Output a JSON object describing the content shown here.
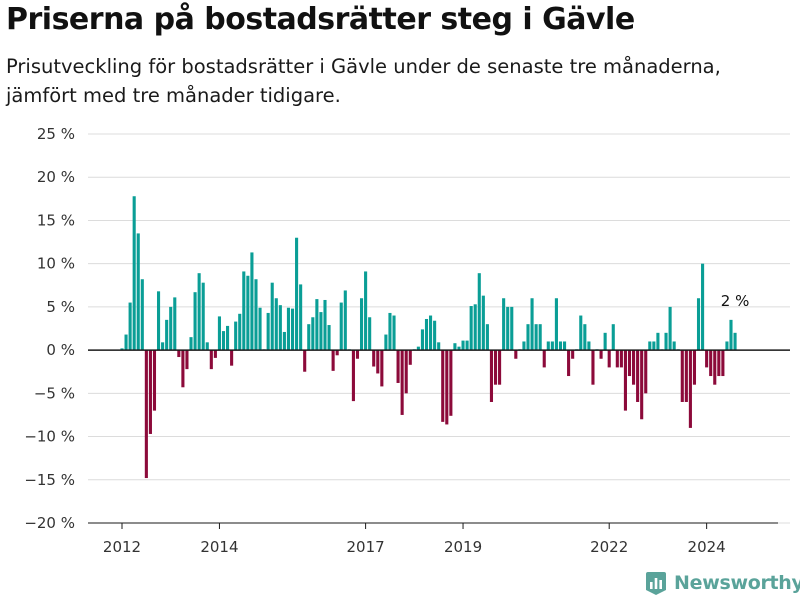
{
  "title": "Priserna på bostadsrätter steg i Gävle",
  "subtitle": "Prisutveckling för bostadsrätter i Gävle under de senaste tre månaderna, jämfört med tre månader tidigare.",
  "brand": "Newsworthy",
  "colors": {
    "positive": "#0a9e96",
    "negative": "#8c0a3a",
    "grid": "#dcdcdc",
    "axis": "#1a1a1a",
    "brand": "#5aa39a"
  },
  "chart_data": {
    "type": "bar",
    "ylim": [
      -20,
      25
    ],
    "y_ticks": [
      {
        "value": 25,
        "label": "25 %"
      },
      {
        "value": 20,
        "label": "20 %"
      },
      {
        "value": 15,
        "label": "15 %"
      },
      {
        "value": 10,
        "label": "10 %"
      },
      {
        "value": 5,
        "label": "5 %"
      },
      {
        "value": 0,
        "label": "0 %"
      },
      {
        "value": -5,
        "label": "−5 %"
      },
      {
        "value": -10,
        "label": "−10 %"
      },
      {
        "value": -15,
        "label": "−15 %"
      },
      {
        "value": -20,
        "label": "−20 %"
      }
    ],
    "x_ticks": [
      {
        "label": "2012",
        "index": 0
      },
      {
        "label": "2014",
        "index": 24
      },
      {
        "label": "2017",
        "index": 60
      },
      {
        "label": "2019",
        "index": 84
      },
      {
        "label": "2022",
        "index": 120
      },
      {
        "label": "2024",
        "index": 144
      }
    ],
    "start_label": "2012-01",
    "values": [
      0.2,
      1.8,
      5.5,
      17.8,
      13.5,
      8.2,
      -14.8,
      -9.7,
      -7.0,
      6.8,
      0.9,
      3.5,
      5.0,
      6.1,
      -0.8,
      -4.3,
      -2.2,
      1.5,
      6.7,
      8.9,
      7.8,
      0.9,
      -2.2,
      -0.9,
      3.9,
      2.2,
      2.8,
      -1.8,
      3.3,
      4.2,
      9.1,
      8.6,
      11.3,
      8.2,
      4.9,
      0.1,
      4.3,
      7.8,
      6.0,
      5.2,
      2.1,
      4.9,
      4.8,
      13.0,
      7.6,
      -2.5,
      3.0,
      3.8,
      5.9,
      4.4,
      5.8,
      2.9,
      -2.4,
      -0.6,
      5.5,
      6.9,
      0.1,
      -5.9,
      -1.0,
      6.0,
      9.1,
      3.8,
      -1.9,
      -2.7,
      -4.2,
      1.8,
      4.3,
      4.0,
      -3.8,
      -7.5,
      -5.0,
      -1.7,
      0.1,
      0.4,
      2.4,
      3.6,
      4.0,
      3.4,
      0.9,
      -8.3,
      -8.6,
      -7.6,
      0.8,
      0.4,
      1.1,
      1.1,
      5.1,
      5.3,
      8.9,
      6.3,
      3.0,
      -6.0,
      -4.0,
      -4.0,
      6.0,
      5.0,
      5.0,
      -1.0,
      0.1,
      1.0,
      3.0,
      6.0,
      3.0,
      3.0,
      -2.0,
      1.0,
      1.0,
      6.0,
      1.0,
      1.0,
      -3.0,
      -1.0,
      0.1,
      4.0,
      3.0,
      1.0,
      -4.0,
      0.1,
      -1.0,
      2.0,
      -2.0,
      3.0,
      -2.0,
      -2.0,
      -7.0,
      -3.0,
      -4.0,
      -6.0,
      -8.0,
      -5.0,
      1.0,
      1.0,
      2.0,
      0.1,
      2.0,
      5.0,
      1.0,
      0.1,
      -6.0,
      -6.0,
      -9.0,
      -4.0,
      6.0,
      10.0,
      -2.0,
      -3.0,
      -4.0,
      -3.0,
      -3.0,
      1.0,
      3.5,
      2.0
    ],
    "last_value_label": "2 %"
  }
}
